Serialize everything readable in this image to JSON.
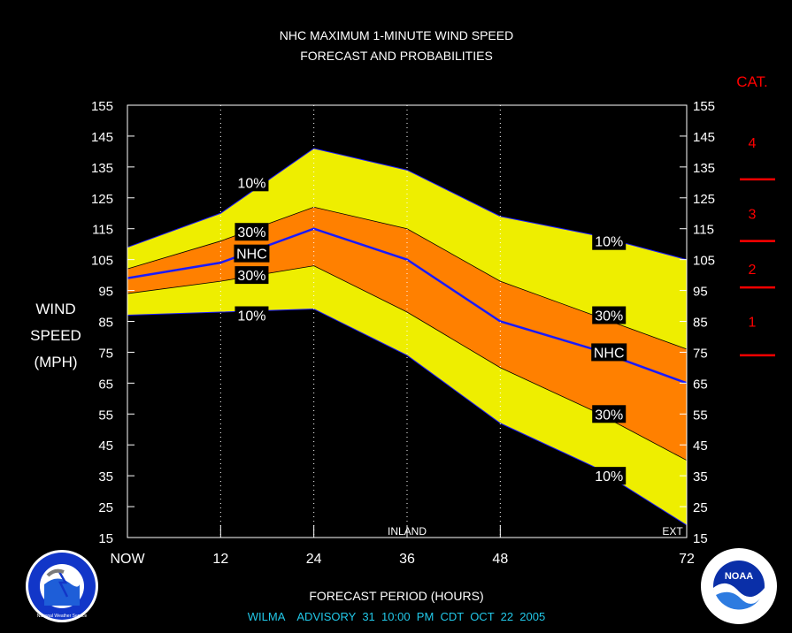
{
  "chart_data": {
    "type": "area",
    "title": "NHC MAXIMUM 1-MINUTE WIND SPEED",
    "subtitle": "FORECAST AND PROBABILITIES",
    "ylabel": [
      "WIND",
      "SPEED",
      "(MPH)"
    ],
    "xlabel": "FORECAST PERIOD (HOURS)",
    "ylim": [
      15,
      155
    ],
    "xlim": [
      0,
      72
    ],
    "yticks": [
      "15",
      "25",
      "35",
      "45",
      "55",
      "65",
      "75",
      "85",
      "95",
      "105",
      "115",
      "125",
      "135",
      "145",
      "155"
    ],
    "xticks": [
      {
        "x": 0,
        "label": "NOW"
      },
      {
        "x": 12,
        "label": "12"
      },
      {
        "x": 24,
        "label": "24"
      },
      {
        "x": 36,
        "label": "36"
      },
      {
        "x": 48,
        "label": "48"
      },
      {
        "x": 72,
        "label": "72"
      }
    ],
    "x": [
      0,
      12,
      24,
      36,
      48,
      60,
      72
    ],
    "series": [
      {
        "name": "10%",
        "band": "upper",
        "values": [
          109,
          120,
          141,
          134,
          119,
          113,
          105
        ]
      },
      {
        "name": "30%",
        "band": "upper",
        "values": [
          102,
          111,
          122,
          115,
          98,
          87,
          76
        ]
      },
      {
        "name": "NHC",
        "values": [
          99,
          104,
          115,
          105,
          85,
          76,
          65
        ]
      },
      {
        "name": "30%",
        "band": "lower",
        "values": [
          94,
          98,
          103,
          88,
          70,
          56,
          40
        ]
      },
      {
        "name": "10%",
        "band": "lower",
        "values": [
          87,
          88,
          89,
          74,
          52,
          38,
          19
        ]
      }
    ],
    "band_labels": [
      {
        "text": "10%",
        "x": 16,
        "y": 130
      },
      {
        "text": "30%",
        "x": 16,
        "y": 114
      },
      {
        "text": "NHC",
        "x": 16,
        "y": 107
      },
      {
        "text": "30%",
        "x": 16,
        "y": 100
      },
      {
        "text": "10%",
        "x": 16,
        "y": 87
      },
      {
        "text": "10%",
        "x": 62,
        "y": 111
      },
      {
        "text": "30%",
        "x": 62,
        "y": 87
      },
      {
        "text": "NHC",
        "x": 62,
        "y": 75
      },
      {
        "text": "30%",
        "x": 62,
        "y": 55
      },
      {
        "text": "10%",
        "x": 62,
        "y": 35
      }
    ],
    "region_labels": [
      {
        "text": "INLAND",
        "x": 36
      },
      {
        "text": "EXT",
        "x": 72
      }
    ],
    "category_scale": {
      "title": "CAT.",
      "categories": [
        {
          "label": "4",
          "y": 143
        },
        {
          "label": "3",
          "y": 120
        },
        {
          "label": "2",
          "y": 102
        },
        {
          "label": "1",
          "y": 85
        }
      ],
      "thresholds": [
        131,
        111,
        96,
        74
      ]
    },
    "colors": {
      "outer_band": "#eeee00",
      "inner_band": "#ff8000",
      "nhc_line": "#1a1aff",
      "category": "#ff0000",
      "footer": "#22c8e8"
    },
    "grid": "dotted verticals at 12, 24, 36, 48"
  },
  "footer": {
    "advisory": "WILMA    ADVISORY  31  10:00  PM  CDT  OCT  22  2005"
  },
  "logos": {
    "left": "National Weather Service",
    "right": "NOAA"
  }
}
